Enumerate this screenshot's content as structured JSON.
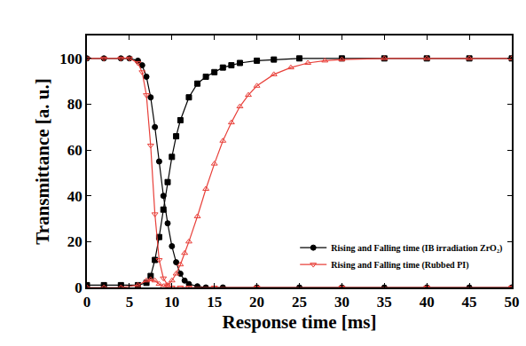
{
  "chart_data": {
    "type": "line",
    "x_label": "Response time [ms]",
    "y_label": "Transmittance [a. u.]",
    "xlim": [
      0,
      50
    ],
    "xticks": [
      0,
      5,
      10,
      15,
      20,
      25,
      30,
      35,
      40,
      45,
      50
    ],
    "ylim": [
      0,
      110
    ],
    "yticks": [
      0,
      20,
      40,
      60,
      80,
      100
    ],
    "grid": false,
    "legend": "lower right",
    "series": [
      {
        "name": "Rising and Falling time (IB irradiation ZrO₂)",
        "color": "#000000",
        "marker": "circle",
        "line_style": "solid",
        "x": [
          0,
          2,
          4,
          5,
          6,
          6.5,
          7,
          7.5,
          8,
          8.5,
          9,
          9.5,
          10,
          10.5,
          11,
          11.5,
          12,
          13,
          14,
          16,
          20,
          25,
          30,
          35,
          40,
          45,
          50
        ],
        "values": [
          100,
          100,
          100,
          100,
          99,
          97,
          92,
          83,
          70,
          55,
          40,
          28,
          18,
          11,
          6,
          3,
          1.5,
          0.5,
          0,
          0,
          0,
          0,
          0,
          0,
          0,
          0,
          0
        ]
      },
      {
        "name": "Rising and Falling time (IB irradiation ZrO₂)",
        "color": "#000000",
        "marker": "square",
        "line_style": "solid",
        "x": [
          0,
          2,
          4,
          6,
          7,
          7.5,
          8,
          8.5,
          9,
          9.5,
          10,
          10.5,
          11,
          12,
          13,
          14,
          15,
          16,
          17,
          18,
          20,
          22,
          25,
          30,
          35,
          40,
          45,
          50
        ],
        "values": [
          1,
          1,
          1,
          1,
          2,
          5,
          12,
          22,
          34,
          46,
          57,
          66,
          73,
          83,
          89,
          92,
          94,
          96,
          97,
          98,
          99,
          99.5,
          100,
          100,
          100,
          100,
          100,
          100
        ]
      },
      {
        "name": "Rising and Falling time (Rubbed PI)",
        "color": "#e8403a",
        "marker": "open-triangle-down",
        "line_style": "solid",
        "x": [
          0,
          2,
          4,
          5,
          6,
          6.5,
          7,
          7.5,
          8,
          8.5,
          9,
          9.5,
          10,
          11,
          12,
          15,
          20,
          30,
          40,
          50
        ],
        "values": [
          100,
          100,
          100,
          100,
          98,
          94,
          84,
          62,
          32,
          12,
          4,
          1,
          0,
          0,
          0,
          0,
          0,
          0,
          0,
          0
        ]
      },
      {
        "name": "Rising and Falling time (Rubbed PI)",
        "color": "#e8403a",
        "marker": "open-triangle-up",
        "line_style": "solid",
        "x": [
          0,
          2,
          4,
          6,
          7,
          7.5,
          8,
          8.5,
          9,
          9.5,
          10,
          10.5,
          11,
          11.5,
          12,
          13,
          14,
          15,
          16,
          17,
          18,
          19,
          20,
          22,
          24,
          26,
          28,
          30,
          35,
          40,
          45,
          50
        ],
        "values": [
          0,
          0,
          0,
          1,
          3,
          3.5,
          3,
          1.5,
          0.5,
          1,
          3,
          6,
          10,
          15,
          20,
          31,
          43,
          54,
          64,
          72,
          79,
          84,
          88,
          93,
          96,
          98,
          99,
          99.5,
          100,
          100,
          100,
          100
        ]
      }
    ]
  }
}
